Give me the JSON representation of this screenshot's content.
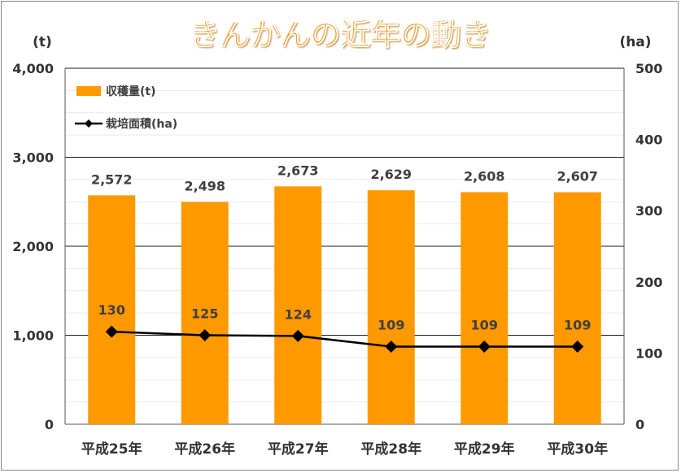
{
  "chart_data": {
    "type": "bar+line",
    "title": "きんかんの近年の動き",
    "categories": [
      "平成25年",
      "平成26年",
      "平成27年",
      "平成28年",
      "平成29年",
      "平成30年"
    ],
    "y_left_unit": "(t)",
    "y_right_unit": "(ha)",
    "y_left_ticks": [
      "0",
      "1,000",
      "2,000",
      "3,000",
      "4,000"
    ],
    "y_right_ticks": [
      "0",
      "100",
      "200",
      "300",
      "400",
      "500"
    ],
    "ylim_left": [
      0,
      4000
    ],
    "ylim_right": [
      0,
      500
    ],
    "grid": "horizontal",
    "legend_position": "top-left",
    "series": [
      {
        "name": "収穫量(t)",
        "type": "bar",
        "axis": "left",
        "color": "#ff9900",
        "values": [
          2572,
          2498,
          2673,
          2629,
          2608,
          2607
        ],
        "labels": [
          "2,572",
          "2,498",
          "2,673",
          "2,629",
          "2,608",
          "2,607"
        ]
      },
      {
        "name": "栽培面積(ha)",
        "type": "line",
        "axis": "right",
        "color": "#000000",
        "marker": "diamond",
        "values": [
          130,
          125,
          124,
          109,
          109,
          109
        ],
        "labels": [
          "130",
          "125",
          "124",
          "109",
          "109",
          "109"
        ]
      }
    ]
  }
}
